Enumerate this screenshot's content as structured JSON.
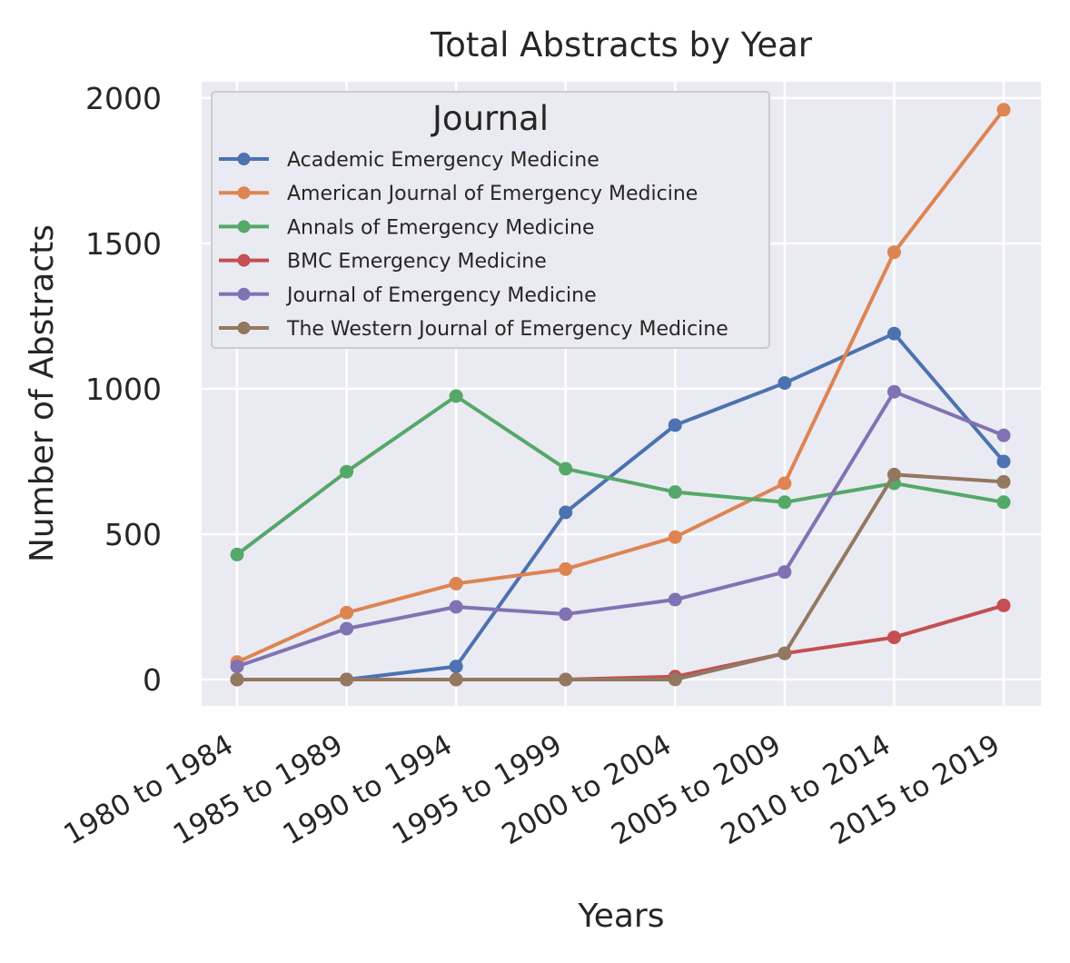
{
  "chart_data": {
    "type": "line",
    "title": "Total Abstracts by Year",
    "xlabel": "Years",
    "ylabel": "Number of Abstracts",
    "categories": [
      "1980 to 1984",
      "1985 to 1989",
      "1990 to 1994",
      "1995 to 1999",
      "2000 to 2004",
      "2005 to 2009",
      "2010 to 2014",
      "2015 to 2019"
    ],
    "yticks": [
      0,
      500,
      1000,
      1500,
      2000
    ],
    "ylim": [
      -90,
      2050
    ],
    "grid": true,
    "legend": {
      "title": "Journal",
      "placement": "upper-left"
    },
    "series": [
      {
        "name": "Academic Emergency Medicine",
        "color": "#4c72b0",
        "values": [
          0,
          0,
          45,
          575,
          875,
          1020,
          1190,
          750
        ]
      },
      {
        "name": "American Journal of Emergency Medicine",
        "color": "#dd8452",
        "values": [
          60,
          230,
          330,
          380,
          490,
          675,
          1470,
          1960
        ]
      },
      {
        "name": "Annals of Emergency Medicine",
        "color": "#55a868",
        "values": [
          430,
          715,
          975,
          725,
          645,
          610,
          675,
          610
        ]
      },
      {
        "name": "BMC Emergency Medicine",
        "color": "#c44e52",
        "values": [
          0,
          0,
          0,
          0,
          10,
          90,
          145,
          255
        ]
      },
      {
        "name": "Journal of Emergency Medicine",
        "color": "#8172b3",
        "values": [
          45,
          175,
          250,
          225,
          275,
          370,
          990,
          840
        ]
      },
      {
        "name": "The Western Journal of Emergency Medicine",
        "color": "#937860",
        "values": [
          0,
          0,
          0,
          0,
          0,
          90,
          705,
          680
        ]
      }
    ]
  }
}
